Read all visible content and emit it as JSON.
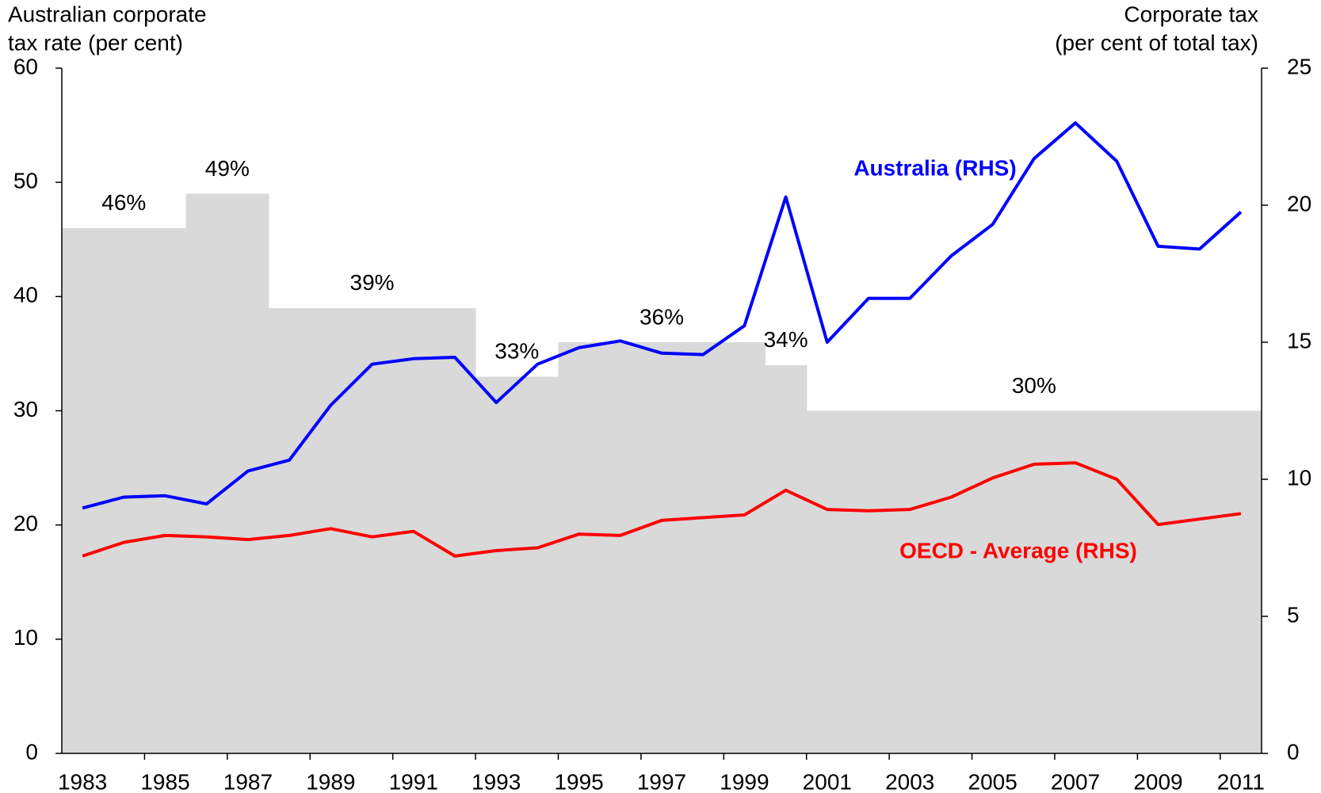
{
  "chart_data": {
    "type": "line",
    "ylabel": [
      "Australian corporate",
      "tax rate (per cent)"
    ],
    "y2label": [
      "Corporate tax",
      "(per cent of total tax)"
    ],
    "categories": [
      "1983",
      null,
      "1985",
      null,
      "1987",
      null,
      "1989",
      null,
      "1991",
      null,
      "1993",
      null,
      "1995",
      null,
      "1997",
      null,
      "1999",
      null,
      "2001",
      null,
      "2003",
      null,
      "2005",
      null,
      "2007",
      null,
      "2009",
      null,
      "2011"
    ],
    "area": {
      "color": "#d9d9d9",
      "values": [
        46,
        46,
        46,
        49,
        49,
        39,
        39,
        39,
        39,
        39,
        33,
        33,
        36,
        36,
        36,
        36,
        36,
        34,
        30,
        30,
        30,
        30,
        30,
        30,
        30,
        30,
        30,
        30,
        30
      ],
      "labels": [
        "46%",
        "49%",
        "39%",
        "33%",
        "36%",
        "34%",
        "30%"
      ]
    },
    "series": [
      {
        "name": "Australia (RHS)",
        "color": "#0000ff",
        "axis": "y2",
        "values": [
          8.95,
          9.35,
          9.4,
          9.1,
          10.3,
          10.7,
          12.7,
          14.2,
          14.4,
          14.45,
          12.8,
          14.2,
          14.8,
          15.05,
          14.6,
          14.55,
          15.6,
          20.3,
          15.0,
          16.6,
          16.6,
          18.15,
          19.3,
          21.7,
          23.0,
          21.6,
          18.5,
          18.4,
          19.75
        ]
      },
      {
        "name": "OECD - Average (RHS)",
        "color": "#ff0000",
        "axis": "y2",
        "values": [
          7.2,
          7.7,
          7.95,
          7.9,
          7.8,
          7.95,
          8.2,
          7.9,
          8.1,
          7.2,
          7.4,
          7.5,
          8.0,
          7.95,
          8.5,
          8.6,
          8.7,
          9.6,
          8.9,
          8.85,
          8.9,
          9.35,
          10.05,
          10.55,
          10.6,
          10.0,
          8.35,
          8.55,
          8.75
        ]
      }
    ],
    "ylim": [
      0,
      60
    ],
    "yticks": [
      0,
      10,
      20,
      30,
      40,
      50,
      60
    ],
    "y2lim": [
      0,
      25
    ],
    "y2ticks": [
      0,
      5,
      10,
      15,
      20,
      25
    ]
  }
}
